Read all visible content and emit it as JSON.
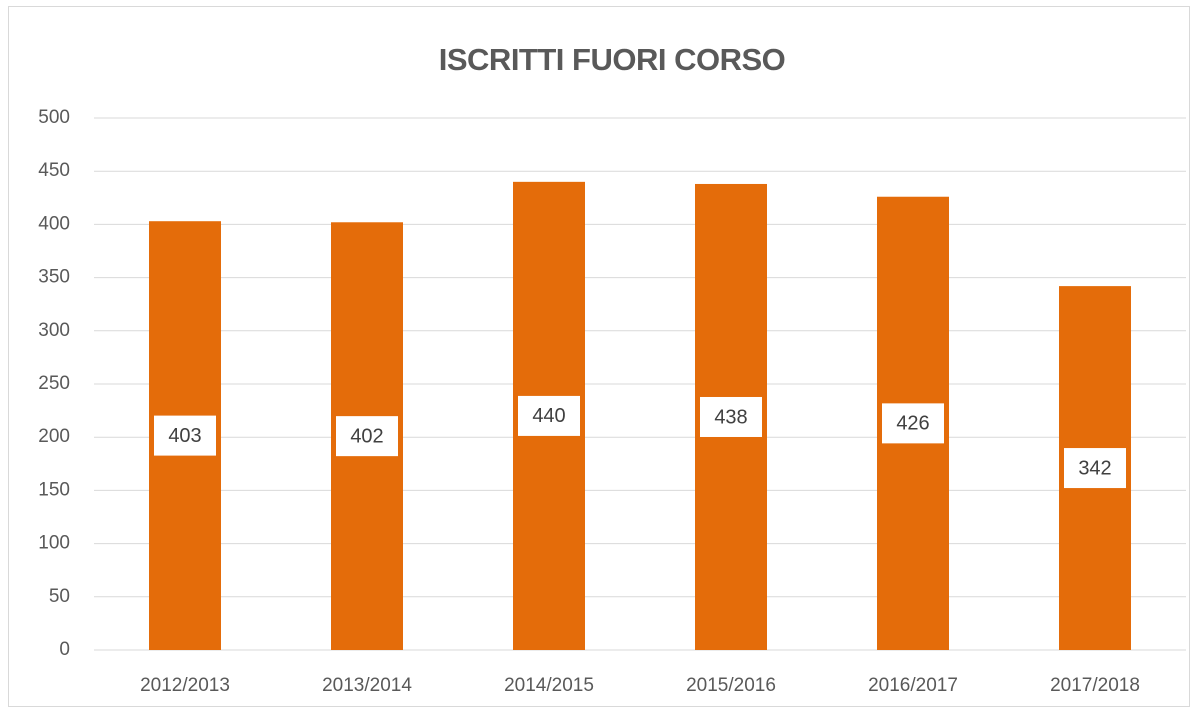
{
  "chart_data": {
    "type": "bar",
    "title": "ISCRITTI FUORI CORSO",
    "categories": [
      "2012/2013",
      "2013/2014",
      "2014/2015",
      "2015/2016",
      "2016/2017",
      "2017/2018"
    ],
    "values": [
      403,
      402,
      440,
      438,
      426,
      342
    ],
    "color": "#e46c0a",
    "ylim": [
      0,
      500
    ],
    "yticks": [
      0,
      50,
      100,
      150,
      200,
      250,
      300,
      350,
      400,
      450,
      500
    ],
    "grid": true
  }
}
